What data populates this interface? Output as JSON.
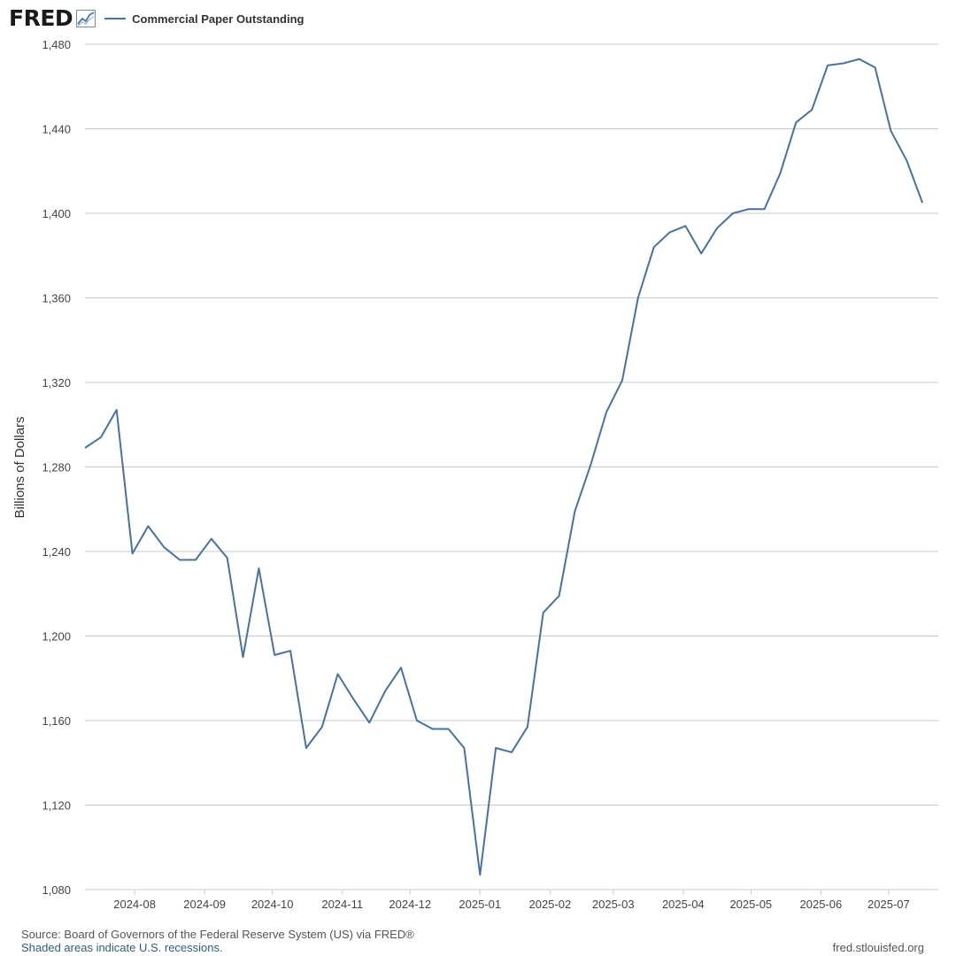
{
  "brand": {
    "logo_text": "FRED",
    "logo_mark": "®"
  },
  "legend": {
    "label": "Commercial Paper Outstanding",
    "color": "#4572a7"
  },
  "footer": {
    "source": "Source: Board of Governors of the Federal Reserve System (US) via FRED®",
    "recession_note": "Shaded areas indicate U.S. recessions.",
    "site": "fred.stlouisfed.org"
  },
  "chart_data": {
    "type": "line",
    "title": "",
    "xlabel": "",
    "ylabel": "Billions of Dollars",
    "ylim": [
      1080,
      1480
    ],
    "yticks": [
      1080,
      1120,
      1160,
      1200,
      1240,
      1280,
      1320,
      1360,
      1400,
      1440,
      1480
    ],
    "ytick_labels": [
      "1,080",
      "1,120",
      "1,160",
      "1,200",
      "1,240",
      "1,280",
      "1,320",
      "1,360",
      "1,400",
      "1,440",
      "1,480"
    ],
    "xticks": [
      "2024-08-01",
      "2024-09-01",
      "2024-10-01",
      "2024-11-01",
      "2024-12-01",
      "2025-01-01",
      "2025-02-01",
      "2025-03-01",
      "2025-04-01",
      "2025-05-01",
      "2025-06-01",
      "2025-07-01"
    ],
    "xtick_labels": [
      "2024-08",
      "2024-09",
      "2024-10",
      "2024-11",
      "2024-12",
      "2025-01",
      "2025-02",
      "2025-03",
      "2025-04",
      "2025-05",
      "2025-06",
      "2025-07"
    ],
    "xlim": [
      "2024-07-10",
      "2025-07-23"
    ],
    "grid": "horizontal",
    "legend_position": "top-left",
    "series": [
      {
        "name": "Commercial Paper Outstanding",
        "color": "#4572a7",
        "x": [
          "2024-07-10",
          "2024-07-17",
          "2024-07-24",
          "2024-07-31",
          "2024-08-07",
          "2024-08-14",
          "2024-08-21",
          "2024-08-28",
          "2024-09-04",
          "2024-09-11",
          "2024-09-18",
          "2024-09-25",
          "2024-10-02",
          "2024-10-09",
          "2024-10-16",
          "2024-10-23",
          "2024-10-30",
          "2024-11-06",
          "2024-11-13",
          "2024-11-20",
          "2024-11-27",
          "2024-12-04",
          "2024-12-11",
          "2024-12-18",
          "2024-12-25",
          "2025-01-01",
          "2025-01-08",
          "2025-01-15",
          "2025-01-22",
          "2025-01-29",
          "2025-02-05",
          "2025-02-12",
          "2025-02-19",
          "2025-02-26",
          "2025-03-05",
          "2025-03-12",
          "2025-03-19",
          "2025-03-26",
          "2025-04-02",
          "2025-04-09",
          "2025-04-16",
          "2025-04-23",
          "2025-04-30",
          "2025-05-07",
          "2025-05-14",
          "2025-05-21",
          "2025-05-28",
          "2025-06-04",
          "2025-06-11",
          "2025-06-18",
          "2025-06-25",
          "2025-07-02",
          "2025-07-09",
          "2025-07-16"
        ],
        "values": [
          1289,
          1294,
          1307,
          1239,
          1252,
          1242,
          1236,
          1236,
          1246,
          1237,
          1190,
          1232,
          1191,
          1193,
          1147,
          1157,
          1182,
          1170,
          1159,
          1174,
          1185,
          1160,
          1156,
          1156,
          1147,
          1087,
          1147,
          1145,
          1157,
          1211,
          1219,
          1259,
          1281,
          1306,
          1321,
          1360,
          1384,
          1391,
          1394,
          1381,
          1393,
          1400,
          1402,
          1402,
          1419,
          1443,
          1449,
          1470,
          1471,
          1473,
          1469,
          1439,
          1425,
          1405
        ]
      }
    ]
  }
}
